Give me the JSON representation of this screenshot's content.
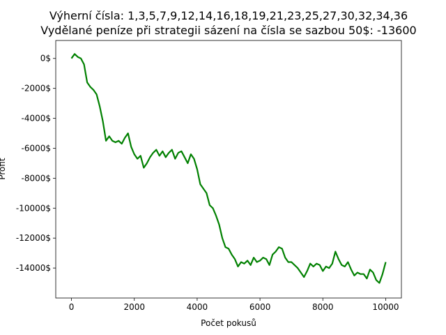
{
  "chart_data": {
    "type": "line",
    "title_lines": [
      "Výherní čísla: 1,3,5,7,9,12,14,16,18,19,21,23,25,27,30,32,34,36",
      "Vydělané peníze při strategii sázení na čísla se sazbou 50$: -13600"
    ],
    "xlabel": "Počet pokusů",
    "ylabel": "Profit",
    "xlim": [
      -500,
      10500
    ],
    "ylim": [
      -16000,
      1200
    ],
    "x_ticks": [
      0,
      2000,
      4000,
      6000,
      8000,
      10000
    ],
    "x_tick_labels": [
      "0",
      "2000",
      "4000",
      "6000",
      "8000",
      "10000"
    ],
    "y_ticks": [
      0,
      -2000,
      -4000,
      -6000,
      -8000,
      -10000,
      -12000,
      -14000
    ],
    "y_tick_labels": [
      "0$",
      "-2000$",
      "-4000$",
      "-6000$",
      "-8000$",
      "-10000$",
      "-12000$",
      "-14000$"
    ],
    "grid": false,
    "series": [
      {
        "color": "#008000",
        "x": [
          0,
          100,
          200,
          300,
          400,
          500,
          600,
          700,
          800,
          900,
          1000,
          1100,
          1200,
          1300,
          1400,
          1500,
          1600,
          1700,
          1800,
          1900,
          2000,
          2100,
          2200,
          2300,
          2400,
          2500,
          2600,
          2700,
          2800,
          2900,
          3000,
          3100,
          3200,
          3300,
          3400,
          3500,
          3600,
          3700,
          3800,
          3900,
          4000,
          4100,
          4200,
          4300,
          4400,
          4500,
          4600,
          4700,
          4800,
          4900,
          5000,
          5100,
          5200,
          5300,
          5400,
          5500,
          5600,
          5700,
          5800,
          5900,
          6000,
          6100,
          6200,
          6300,
          6400,
          6500,
          6600,
          6700,
          6800,
          6900,
          7000,
          7100,
          7200,
          7300,
          7400,
          7500,
          7600,
          7700,
          7800,
          7900,
          8000,
          8100,
          8200,
          8300,
          8400,
          8500,
          8600,
          8700,
          8800,
          8900,
          9000,
          9100,
          9200,
          9300,
          9400,
          9500,
          9600,
          9700,
          9800,
          9900,
          10000
        ],
        "y": [
          0,
          300,
          100,
          0,
          -400,
          -1600,
          -1900,
          -2100,
          -2400,
          -3200,
          -4200,
          -5500,
          -5200,
          -5500,
          -5600,
          -5500,
          -5700,
          -5300,
          -5000,
          -5900,
          -6400,
          -6700,
          -6500,
          -7300,
          -7000,
          -6600,
          -6300,
          -6100,
          -6500,
          -6200,
          -6600,
          -6300,
          -6100,
          -6700,
          -6300,
          -6200,
          -6600,
          -7000,
          -6400,
          -6700,
          -7400,
          -8400,
          -8700,
          -9000,
          -9800,
          -10000,
          -10500,
          -11100,
          -12000,
          -12600,
          -12700,
          -13100,
          -13400,
          -13900,
          -13600,
          -13700,
          -13500,
          -13800,
          -13300,
          -13600,
          -13500,
          -13300,
          -13400,
          -13800,
          -13100,
          -12900,
          -12600,
          -12700,
          -13300,
          -13600,
          -13600,
          -13800,
          -14000,
          -14300,
          -14600,
          -14200,
          -13700,
          -13900,
          -13700,
          -13800,
          -14200,
          -13900,
          -14000,
          -13700,
          -12900,
          -13400,
          -13800,
          -13900,
          -13600,
          -14100,
          -14500,
          -14300,
          -14400,
          -14400,
          -14700,
          -14100,
          -14300,
          -14800,
          -15000,
          -14400,
          -13600
        ]
      }
    ]
  }
}
